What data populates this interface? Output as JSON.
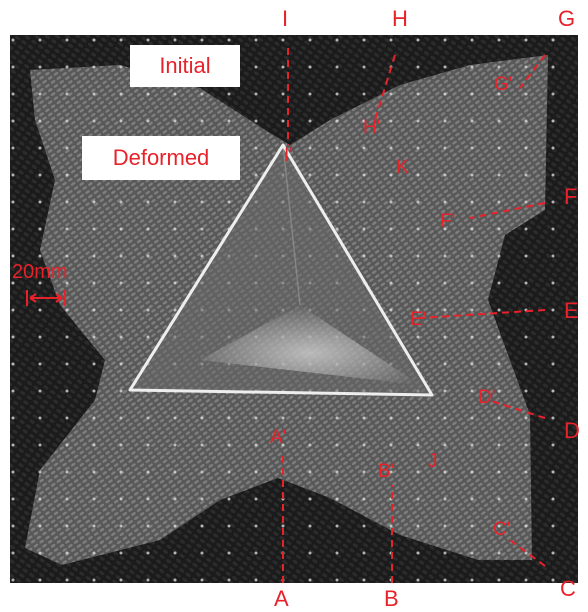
{
  "legend": {
    "initial": "Initial",
    "deformed": "Deformed"
  },
  "scale_bar": "20mm",
  "outer_labels": [
    "I",
    "H",
    "G",
    "F",
    "E",
    "D",
    "C",
    "B",
    "A"
  ],
  "inner_labels": [
    "I'",
    "H'",
    "G'",
    "F'",
    "E'",
    "D'",
    "C'",
    "B'",
    "A'"
  ],
  "points": [
    "K",
    "J"
  ],
  "colors": {
    "annotation": "#e8222a",
    "sheet": "#1c1c1c",
    "background": "#ffffff"
  }
}
